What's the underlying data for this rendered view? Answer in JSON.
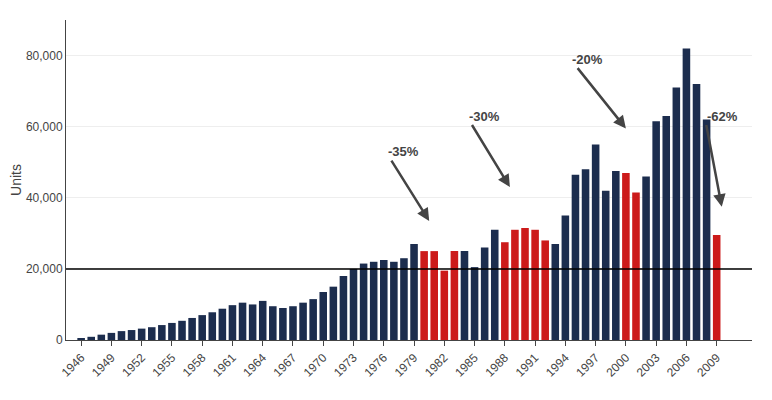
{
  "chart_data": {
    "type": "bar",
    "x": [
      1946,
      1947,
      1948,
      1949,
      1950,
      1951,
      1952,
      1953,
      1954,
      1955,
      1956,
      1957,
      1958,
      1959,
      1960,
      1961,
      1962,
      1963,
      1964,
      1965,
      1966,
      1967,
      1968,
      1969,
      1970,
      1971,
      1972,
      1973,
      1974,
      1975,
      1976,
      1977,
      1978,
      1979,
      1980,
      1981,
      1982,
      1983,
      1984,
      1985,
      1986,
      1987,
      1988,
      1989,
      1990,
      1991,
      1992,
      1993,
      1994,
      1995,
      1996,
      1997,
      1998,
      1999,
      2000,
      2001,
      2002,
      2003,
      2004,
      2005,
      2006,
      2007,
      2008,
      2009
    ],
    "values": [
      500,
      900,
      1500,
      2000,
      2500,
      2800,
      3200,
      3600,
      4200,
      4800,
      5400,
      6200,
      7000,
      7800,
      8800,
      9800,
      10500,
      10000,
      11000,
      9500,
      9000,
      9500,
      10500,
      11500,
      13500,
      15000,
      18000,
      20000,
      21500,
      22000,
      22500,
      22000,
      23000,
      27000,
      25000,
      25000,
      19500,
      25000,
      25000,
      20500,
      26000,
      31000,
      27500,
      31000,
      31500,
      31000,
      28000,
      27000,
      35000,
      46500,
      48000,
      55000,
      42000,
      47500,
      47000,
      41500,
      46000,
      61500,
      63000,
      71000,
      82000,
      72000,
      62000,
      29500
    ],
    "colors": [
      "#1c2d4e",
      "#1c2d4e",
      "#1c2d4e",
      "#1c2d4e",
      "#1c2d4e",
      "#1c2d4e",
      "#1c2d4e",
      "#1c2d4e",
      "#1c2d4e",
      "#1c2d4e",
      "#1c2d4e",
      "#1c2d4e",
      "#1c2d4e",
      "#1c2d4e",
      "#1c2d4e",
      "#1c2d4e",
      "#1c2d4e",
      "#1c2d4e",
      "#1c2d4e",
      "#1c2d4e",
      "#1c2d4e",
      "#1c2d4e",
      "#1c2d4e",
      "#1c2d4e",
      "#1c2d4e",
      "#1c2d4e",
      "#1c2d4e",
      "#1c2d4e",
      "#1c2d4e",
      "#1c2d4e",
      "#1c2d4e",
      "#1c2d4e",
      "#1c2d4e",
      "#1c2d4e",
      "#cc1a1a",
      "#cc1a1a",
      "#cc1a1a",
      "#cc1a1a",
      "#1c2d4e",
      "#1c2d4e",
      "#1c2d4e",
      "#1c2d4e",
      "#cc1a1a",
      "#cc1a1a",
      "#cc1a1a",
      "#cc1a1a",
      "#cc1a1a",
      "#1c2d4e",
      "#1c2d4e",
      "#1c2d4e",
      "#1c2d4e",
      "#1c2d4e",
      "#1c2d4e",
      "#1c2d4e",
      "#cc1a1a",
      "#cc1a1a",
      "#1c2d4e",
      "#1c2d4e",
      "#1c2d4e",
      "#1c2d4e",
      "#1c2d4e",
      "#1c2d4e",
      "#1c2d4e",
      "#cc1a1a"
    ],
    "ylabel": "Units",
    "xlim": [
      1944.5,
      2012.5
    ],
    "xticks": [
      1946,
      1949,
      1952,
      1955,
      1958,
      1961,
      1964,
      1967,
      1970,
      1973,
      1976,
      1979,
      1982,
      1985,
      1988,
      1991,
      1994,
      1997,
      2000,
      2003,
      2006,
      2009
    ],
    "ylim": [
      0,
      90000
    ],
    "yticks": [
      0,
      {
        "value": 20000,
        "label": "20,000"
      },
      {
        "value": 40000,
        "label": "40,000"
      },
      {
        "value": 60000,
        "label": "60,000"
      },
      {
        "value": 80000,
        "label": "80,000"
      }
    ],
    "grid": true,
    "hline": 20000,
    "annotations": [
      {
        "text": "-35%",
        "x": 1980.5,
        "y": 33500,
        "text_x": 1976.2,
        "text_y": 53000
      },
      {
        "text": "-30%",
        "x": 1988.5,
        "y": 43000,
        "text_x": 1984.2,
        "text_y": 63000
      },
      {
        "text": "-20%",
        "x": 2000.0,
        "y": 59500,
        "text_x": 1994.5,
        "text_y": 79000
      },
      {
        "text": "-62%",
        "x": 2009.5,
        "y": 37500,
        "text_x": 2007.8,
        "text_y": 63000
      }
    ]
  }
}
